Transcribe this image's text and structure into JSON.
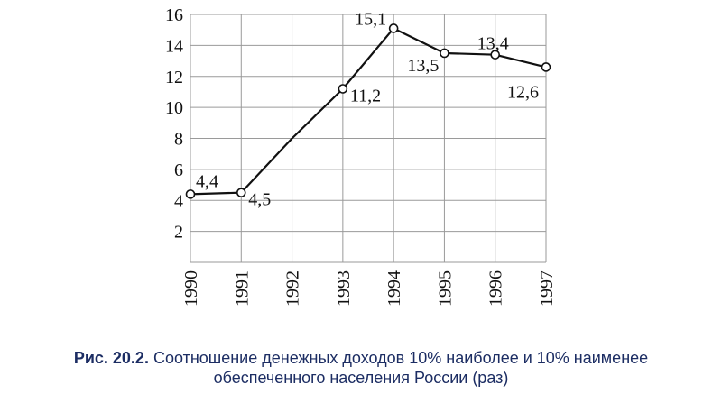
{
  "chart_data": {
    "type": "line",
    "x": [
      "1990",
      "1991",
      "1992",
      "1993",
      "1994",
      "1995",
      "1996",
      "1997"
    ],
    "series": [
      {
        "values": [
          4.4,
          4.5,
          8,
          11.2,
          15.1,
          13.5,
          13.4,
          12.6
        ]
      }
    ],
    "data_labels": [
      "4,4",
      "4,5",
      "",
      "11,2",
      "15,1",
      "13,5",
      "13,4",
      "12,6"
    ],
    "y_ticks": [
      "2",
      "4",
      "6",
      "8",
      "10",
      "12",
      "14",
      "16"
    ],
    "ylim": [
      0,
      16
    ],
    "xlabel": "",
    "ylabel": "",
    "grid": true,
    "legend": "none"
  },
  "caption": {
    "prefix": "Рис. 20.2.",
    "line1": "Соотношение денежных доходов 10% наиболее и 10% наименее",
    "line2": "обеспеченного населения России (раз)"
  }
}
